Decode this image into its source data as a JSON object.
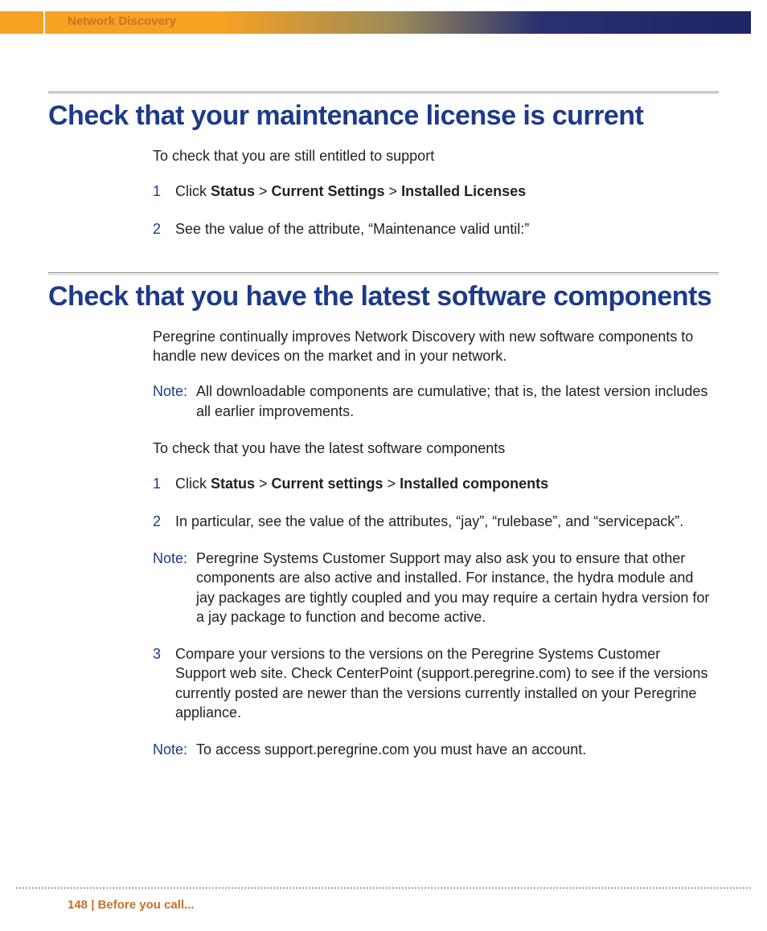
{
  "header": {
    "running_title": "Network Discovery"
  },
  "section1": {
    "title": "Check that your maintenance license is current",
    "intro": "To check that you are still entitled to support",
    "step1_pre": "Click ",
    "step1_b1": "Status",
    "step1_gt1": " > ",
    "step1_b2": "Current Settings",
    "step1_gt2": " > ",
    "step1_b3": "Installed Licenses",
    "step2": "See the value of the attribute, “Maintenance valid until:”"
  },
  "section2": {
    "title": "Check that you have the latest software components",
    "intro": "Peregrine continually improves Network Discovery with new software components to handle new devices on the market and in your network.",
    "note1_label": "Note:",
    "note1": "All downloadable components are cumulative; that is, the latest version includes all earlier improvements.",
    "para2": "To check that you have the latest software components",
    "step1_pre": "Click ",
    "step1_b1": "Status",
    "step1_gt1": " > ",
    "step1_b2": "Current settings",
    "step1_gt2": " > ",
    "step1_b3": "Installed components",
    "step2": "In particular, see the value of the attributes, “jay”, “rulebase”, and “servicepack”.",
    "note2_label": "Note:",
    "note2": "Peregrine Systems Customer Support may also ask you to ensure that other components are also active and installed. For instance, the hydra module and jay packages are tightly coupled and you may require a certain hydra version for a jay package to function and become active.",
    "step3": "Compare your versions to the versions on the Peregrine Systems Customer Support web site. Check CenterPoint (support.peregrine.com) to see if the versions currently posted are newer than the versions currently installed on your Peregrine appliance.",
    "note3_label": "Note:",
    "note3": "To access support.peregrine.com you must have an account."
  },
  "footer": {
    "text": "148 | Before you call..."
  },
  "numbers": {
    "n1": "1",
    "n2": "2",
    "n3": "3"
  }
}
